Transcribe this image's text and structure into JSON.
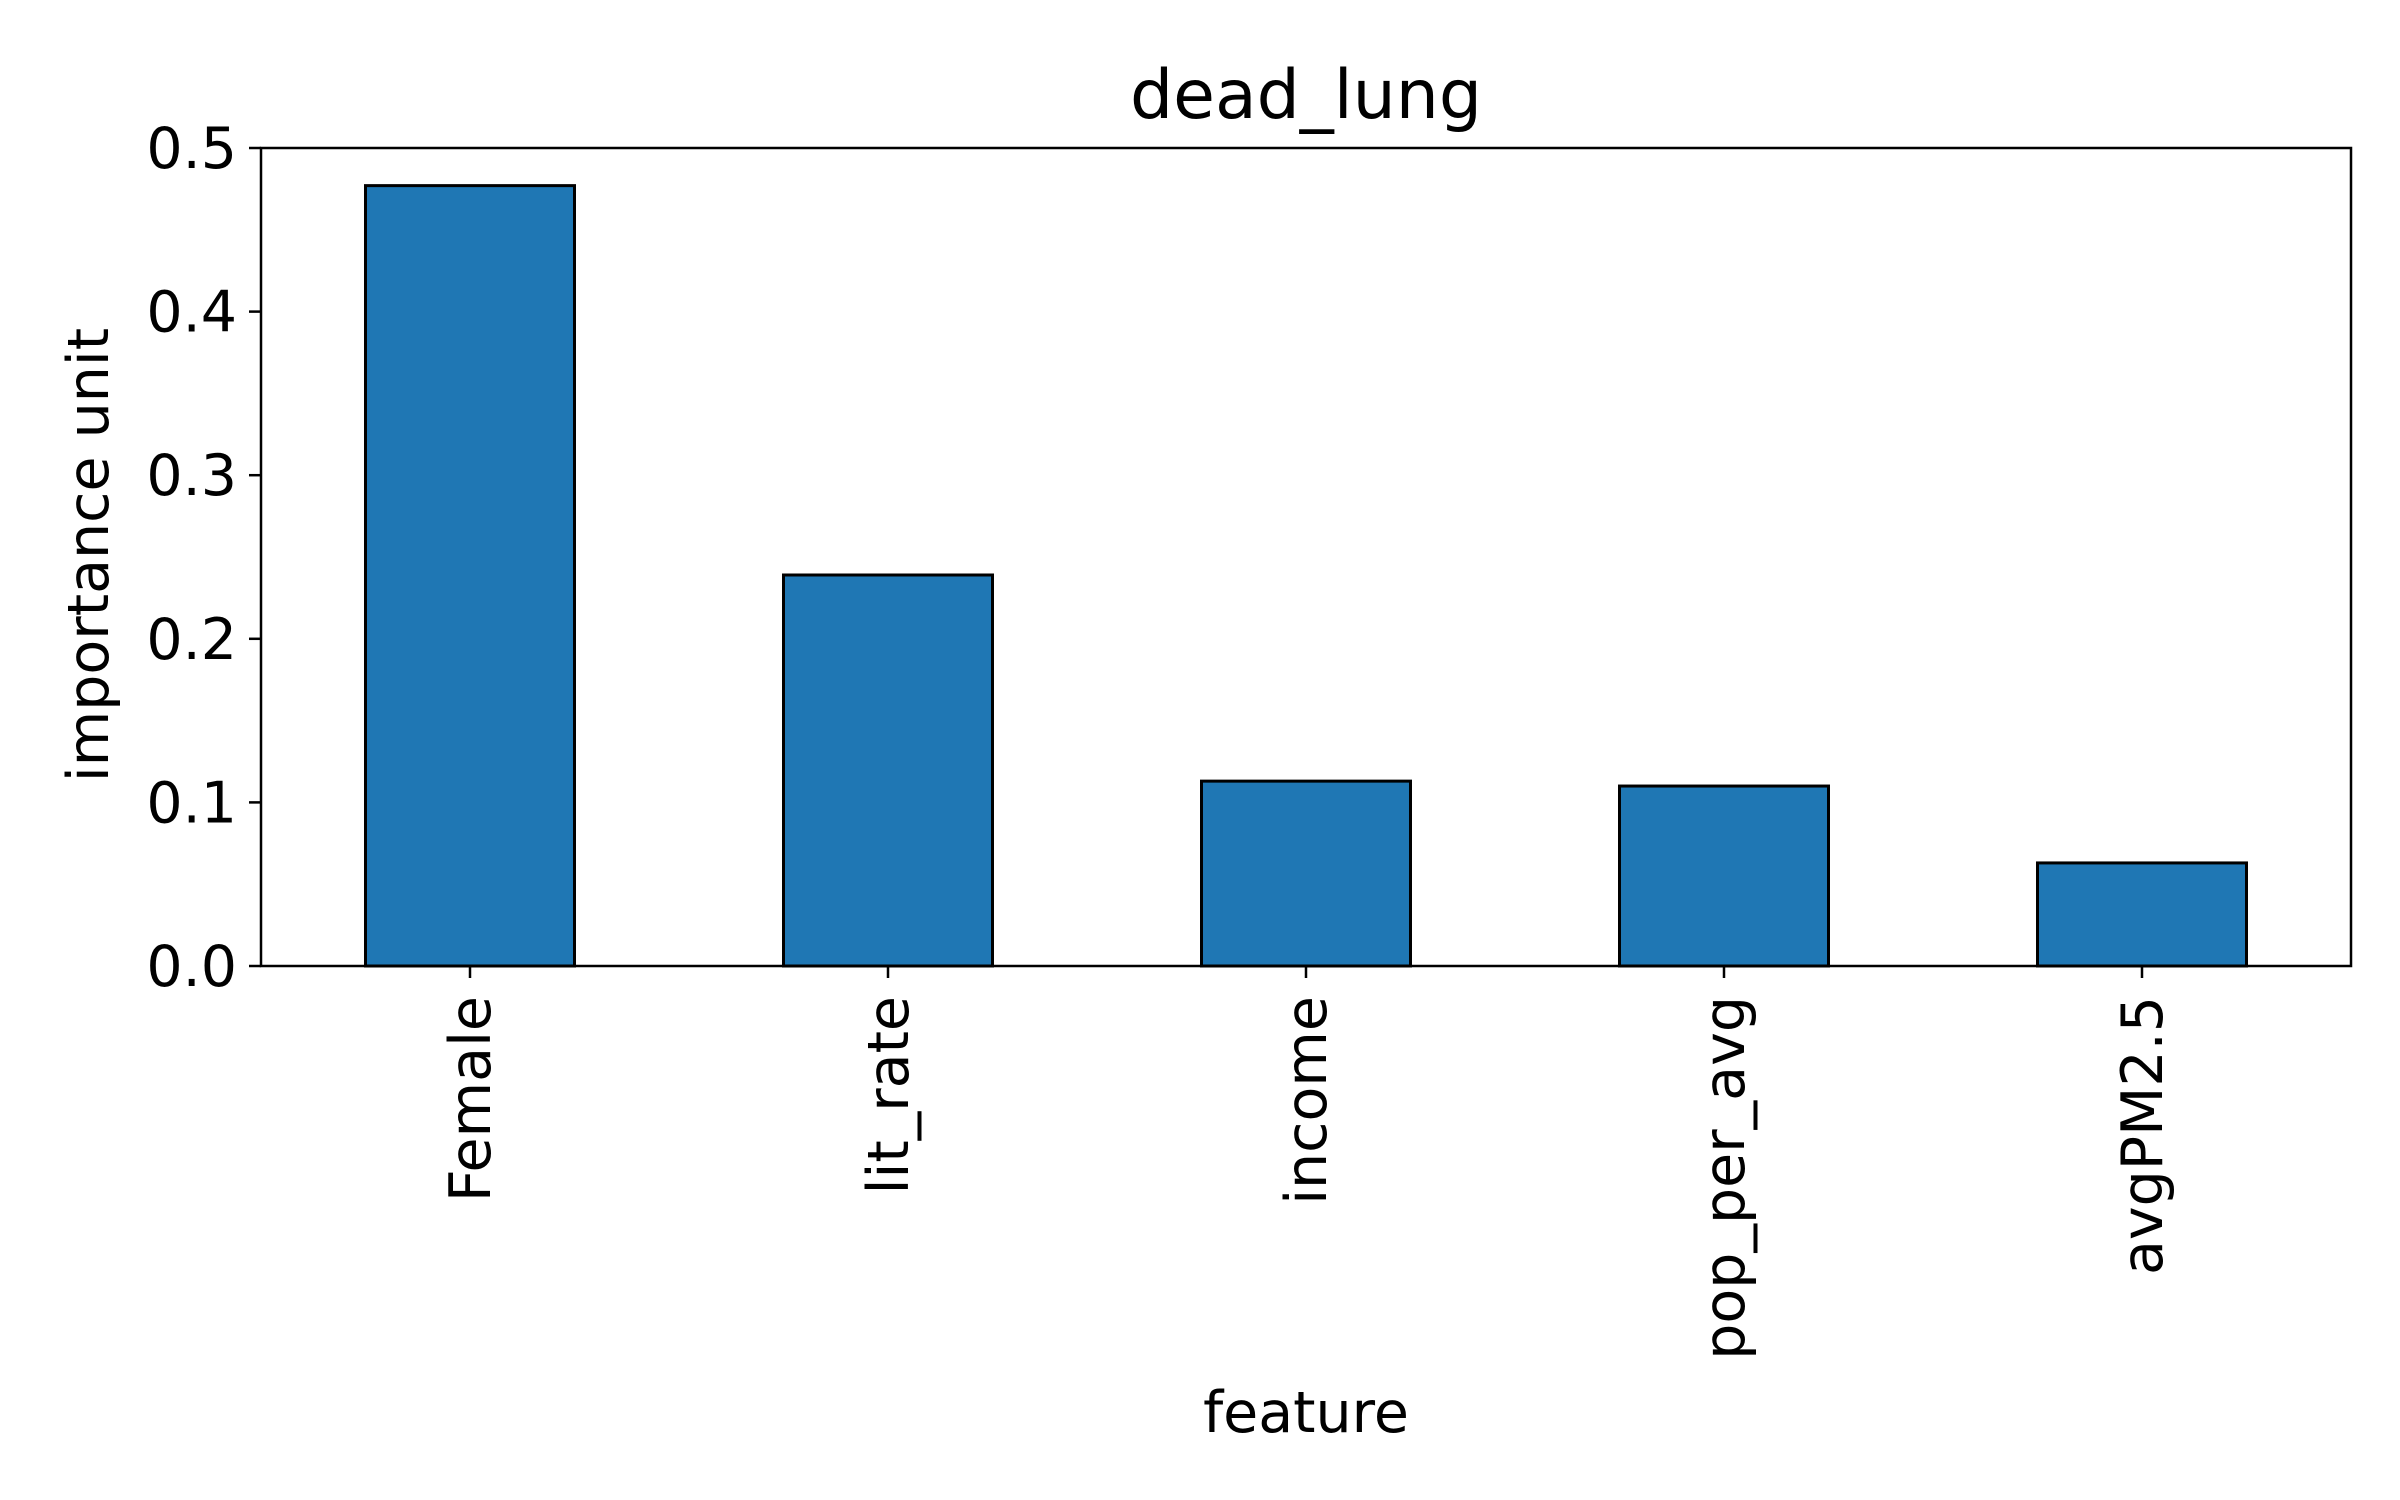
{
  "chart_data": {
    "type": "bar",
    "title": "dead_lung",
    "xlabel": "feature",
    "ylabel": "importance unit",
    "categories": [
      "Female",
      "lit_rate",
      "income",
      "pop_per_avg",
      "avgPM2.5"
    ],
    "values": [
      0.477,
      0.239,
      0.113,
      0.11,
      0.063
    ],
    "ylim": [
      0,
      0.5
    ],
    "yticks": [
      "0.0",
      "0.1",
      "0.2",
      "0.3",
      "0.4",
      "0.5"
    ],
    "grid": false,
    "legend": "none",
    "bar_color": "#1f77b4",
    "edge_color": "#000000"
  }
}
